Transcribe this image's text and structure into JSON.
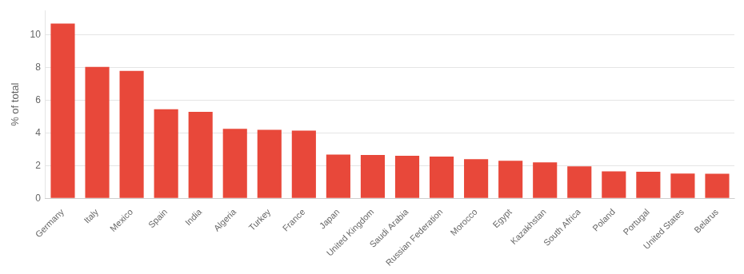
{
  "chart_data": {
    "type": "bar",
    "categories": [
      "Germany",
      "Italy",
      "Mexico",
      "Spain",
      "India",
      "Algeria",
      "Turkey",
      "France",
      "Japan",
      "United Kingdom",
      "Saudi Arabia",
      "Russian Federation",
      "Morocco",
      "Egypt",
      "Kazakhstan",
      "South Africa",
      "Poland",
      "Portugal",
      "United States",
      "Belarus"
    ],
    "values": [
      10.7,
      8.05,
      7.8,
      5.45,
      5.3,
      4.25,
      4.2,
      4.15,
      2.68,
      2.65,
      2.6,
      2.55,
      2.4,
      2.3,
      2.2,
      1.95,
      1.65,
      1.62,
      1.52,
      1.5
    ],
    "color": "#e8483a",
    "ylabel": "% of total",
    "ylim": [
      0,
      11.5
    ],
    "yticks": [
      0,
      2,
      4,
      6,
      8,
      10
    ],
    "grid": true
  }
}
